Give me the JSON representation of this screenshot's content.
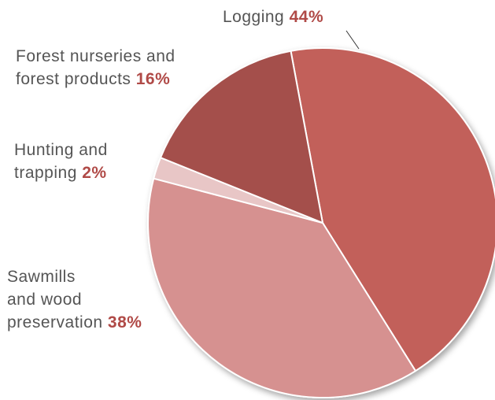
{
  "chart_data": {
    "type": "pie",
    "slices": [
      {
        "label": "Logging",
        "value": 44,
        "value_label": "44%",
        "color": "#c2605a"
      },
      {
        "label": "Sawmills and wood preservation",
        "value": 38,
        "value_label": "38%",
        "color": "#d69190"
      },
      {
        "label": "Hunting and trapping",
        "value": 2,
        "value_label": "2%",
        "color": "#e8c6c6"
      },
      {
        "label": "Forest nurseries and forest products",
        "value": 16,
        "value_label": "16%",
        "color": "#a4504b"
      }
    ],
    "labels": {
      "logging": {
        "lines": [
          "Logging"
        ],
        "pct": "44%"
      },
      "nurseries": {
        "lines": [
          "Forest nurseries and",
          "forest products"
        ],
        "pct": "16%"
      },
      "hunting": {
        "lines": [
          "Hunting and",
          "trapping"
        ],
        "pct": "2%"
      },
      "sawmills": {
        "lines": [
          "Sawmills",
          "and wood",
          "preservation"
        ],
        "pct": "38%"
      }
    },
    "label_color": "#555555",
    "percent_color": "#b04a47"
  }
}
